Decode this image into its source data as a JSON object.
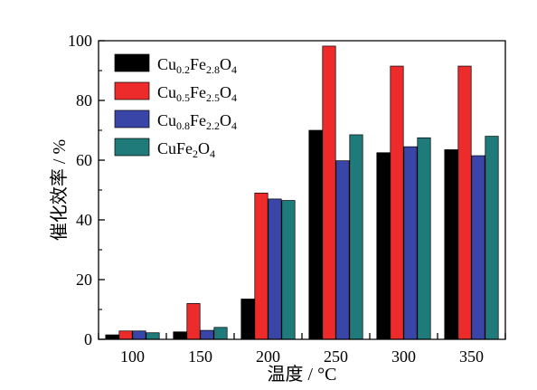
{
  "chart_data": {
    "type": "bar",
    "categories": [
      "100",
      "150",
      "200",
      "250",
      "300",
      "350"
    ],
    "series": [
      {
        "name": "Cu0.2Fe2.8O4",
        "label_parts": [
          [
            "Cu",
            ""
          ],
          [
            "0.2",
            "sub"
          ],
          [
            "Fe",
            ""
          ],
          [
            "2.8",
            "sub"
          ],
          [
            "O",
            ""
          ],
          [
            "4",
            "sub"
          ]
        ],
        "color": "#000000",
        "values": [
          1.5,
          2.5,
          13.5,
          70,
          62.5,
          63.5
        ]
      },
      {
        "name": "Cu0.5Fe2.5O4",
        "label_parts": [
          [
            "Cu",
            ""
          ],
          [
            "0.5",
            "sub"
          ],
          [
            "Fe",
            ""
          ],
          [
            "2.5",
            "sub"
          ],
          [
            "O",
            ""
          ],
          [
            "4",
            "sub"
          ]
        ],
        "color": "#ee2b2b",
        "values": [
          2.8,
          12,
          49,
          98.2,
          91.5,
          91.5
        ]
      },
      {
        "name": "Cu0.8Fe2.2O4",
        "label_parts": [
          [
            "Cu",
            ""
          ],
          [
            "0.8",
            "sub"
          ],
          [
            "Fe",
            ""
          ],
          [
            "2.2",
            "sub"
          ],
          [
            "O",
            ""
          ],
          [
            "4",
            "sub"
          ]
        ],
        "color": "#3a45a8",
        "values": [
          2.8,
          3,
          47,
          59.8,
          64.5,
          61.5
        ]
      },
      {
        "name": "CuFe2O4",
        "label_parts": [
          [
            "CuFe",
            ""
          ],
          [
            "2",
            "sub"
          ],
          [
            "O",
            ""
          ],
          [
            "4",
            "sub"
          ]
        ],
        "color": "#1f7a7a",
        "values": [
          2.2,
          4,
          46.5,
          68.5,
          67.5,
          68
        ]
      }
    ],
    "xlabel": "温度 / °C",
    "ylabel": "催化效率 / %",
    "ylim": [
      0,
      100
    ],
    "yticks": [
      0,
      20,
      40,
      60,
      80,
      100
    ],
    "legend_position": "top-left",
    "grid": false
  }
}
